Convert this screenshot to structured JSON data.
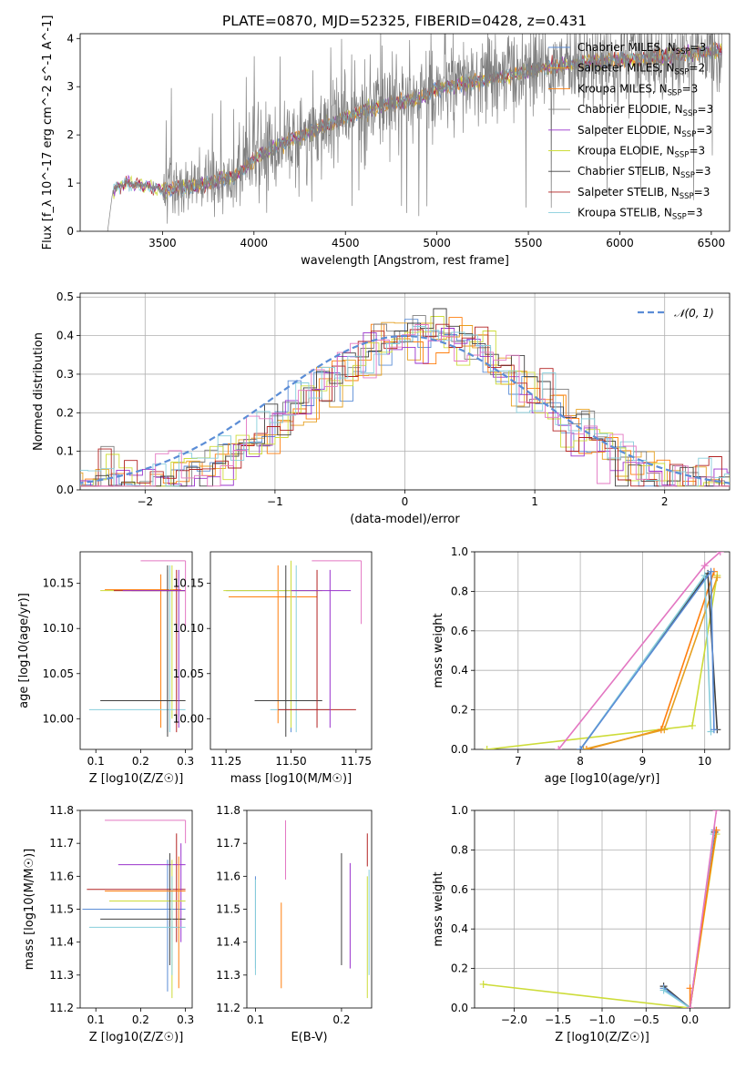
{
  "figure": {
    "title": "PLATE=0870, MJD=52325, FIBERID=0428, z=0.431"
  },
  "colors": {
    "Chabrier MILES": "#5b8dd6",
    "Salpeter MILES": "#e6a020",
    "Kroupa MILES": "#ff7f0e",
    "Chabrier ELODIE": "#7f7f7f",
    "Salpeter ELODIE": "#9932cc",
    "Kroupa ELODIE": "#cddc39",
    "Chabrier STELIB": "#404040",
    "Salpeter STELIB": "#b22222",
    "Kroupa STELIB": "#87cedb",
    "Pink": "#e377c2",
    "Data": "#808080"
  },
  "chart_data": [
    {
      "id": "spectrum",
      "type": "line",
      "xlabel": "wavelength [Angstrom, rest frame]",
      "ylabel": "Flux [f_λ 10^-17 erg cm^-2 s^-1 A^-1]",
      "xlim": [
        3050,
        6600
      ],
      "ylim": [
        0,
        4.1
      ],
      "xticks": [
        "3500",
        "4000",
        "4500",
        "5000",
        "5500",
        "6000",
        "6500"
      ],
      "yticks": [
        "0",
        "1",
        "2",
        "3",
        "4"
      ],
      "legend_position": "top-right",
      "legend": [
        {
          "name": "Chabrier MILES",
          "sub": "SSP",
          "n": "3"
        },
        {
          "name": "Salpeter MILES",
          "sub": "SSP",
          "n": "2"
        },
        {
          "name": "Kroupa MILES",
          "sub": "SSP",
          "n": "3"
        },
        {
          "name": "Chabrier ELODIE",
          "sub": "SSP",
          "n": "3"
        },
        {
          "name": "Salpeter ELODIE",
          "sub": "SSP",
          "n": "3"
        },
        {
          "name": "Kroupa ELODIE",
          "sub": "SSP",
          "n": "3"
        },
        {
          "name": "Chabrier STELIB",
          "sub": "SSP",
          "n": "3"
        },
        {
          "name": "Salpeter STELIB",
          "sub": "SSP",
          "n": "3"
        },
        {
          "name": "Kroupa STELIB",
          "sub": "SSP",
          "n": "3"
        }
      ],
      "continuum": {
        "x": [
          3200,
          3230,
          3300,
          3400,
          3500,
          3700,
          3900,
          4000,
          4200,
          4400,
          4600,
          4800,
          4900,
          5000,
          5200,
          5400,
          5600,
          5800,
          6000,
          6200,
          6400,
          6550
        ],
        "y": [
          0,
          0.85,
          1.0,
          0.95,
          0.85,
          0.95,
          1.15,
          1.5,
          1.9,
          2.2,
          2.5,
          2.7,
          2.75,
          2.95,
          3.1,
          3.25,
          3.4,
          3.5,
          3.55,
          3.6,
          3.7,
          3.75
        ]
      }
    },
    {
      "id": "residuals",
      "type": "histogram",
      "xlabel": "(data-model)/error",
      "ylabel": "Normed distribution",
      "xlim": [
        -2.5,
        2.5
      ],
      "ylim": [
        0,
        0.51
      ],
      "xticks": [
        "−2",
        "−1",
        "0",
        "1",
        "2"
      ],
      "yticks": [
        "0.0",
        "0.1",
        "0.2",
        "0.3",
        "0.4",
        "0.5"
      ],
      "grid": true,
      "legend_position": "top-right",
      "legend": [
        "𝒩(0, 1)"
      ],
      "bin_width": 0.1
    },
    {
      "id": "age-vs-Z",
      "type": "errorbar",
      "xlabel": "Z [log10(Z/Z☉)]",
      "ylabel": "age [log10(age/yr)]",
      "xlim": [
        0.065,
        0.315
      ],
      "ylim": [
        9.966,
        10.185
      ],
      "xticks": [
        "0.1",
        "0.2",
        "0.3"
      ],
      "yticks": [
        "10.00",
        "10.05",
        "10.10",
        "10.15"
      ],
      "points": [
        {
          "color": "Chabrier MILES",
          "x": 0.26,
          "xerr": [
            0.18,
            0.3
          ],
          "y": 10.142,
          "yerr": [
            9.985,
            10.165
          ]
        },
        {
          "color": "Kroupa MILES",
          "x": 0.245,
          "xerr": [
            0.12,
            0.29
          ],
          "y": 10.143,
          "yerr": [
            9.99,
            10.16
          ]
        },
        {
          "color": "Kroupa ELODIE",
          "x": 0.27,
          "xerr": [
            0.11,
            0.3
          ],
          "y": 10.142,
          "yerr": [
            10.0,
            10.17
          ]
        },
        {
          "color": "Kroupa STELIB",
          "x": 0.265,
          "xerr": [
            0.085,
            0.3
          ],
          "y": 10.01,
          "yerr": [
            9.985,
            10.17
          ]
        },
        {
          "color": "Chabrier STELIB",
          "x": 0.26,
          "xerr": [
            0.11,
            0.3
          ],
          "y": 10.02,
          "yerr": [
            9.98,
            10.17
          ]
        },
        {
          "color": "Salpeter STELIB",
          "x": 0.28,
          "xerr": [
            0.14,
            0.3
          ],
          "y": 10.142,
          "yerr": [
            9.985,
            10.165
          ]
        },
        {
          "color": "Salpeter ELODIE",
          "x": 0.285,
          "xerr": [
            0.16,
            0.3
          ],
          "y": 10.142,
          "yerr": [
            9.99,
            10.165
          ]
        },
        {
          "color": "Pink",
          "x": 0.3,
          "xerr": [
            0.2,
            0.3
          ],
          "y": 10.175,
          "yerr": [
            10.1,
            10.175
          ]
        }
      ]
    },
    {
      "id": "age-vs-mass",
      "type": "errorbar",
      "xlabel": "mass [log10(M/M☉)]",
      "ylabel": "",
      "xlim": [
        11.19,
        11.81
      ],
      "ylim": [
        9.966,
        10.185
      ],
      "xticks": [
        "11.25",
        "11.50",
        "11.75"
      ],
      "yticks": [
        "10.00",
        "10.05",
        "10.10",
        "10.15"
      ],
      "points": [
        {
          "color": "Chabrier MILES",
          "x": 11.5,
          "xerr": [
            11.25,
            11.6
          ],
          "y": 10.142,
          "yerr": [
            9.985,
            10.175
          ]
        },
        {
          "color": "Kroupa MILES",
          "x": 11.45,
          "xerr": [
            11.26,
            11.6
          ],
          "y": 10.135,
          "yerr": [
            9.995,
            10.17
          ]
        },
        {
          "color": "Kroupa ELODIE",
          "x": 11.5,
          "xerr": [
            11.24,
            11.62
          ],
          "y": 10.142,
          "yerr": [
            9.99,
            10.175
          ]
        },
        {
          "color": "Kroupa STELIB",
          "x": 11.52,
          "xerr": [
            11.42,
            11.65
          ],
          "y": 10.01,
          "yerr": [
            9.985,
            10.17
          ]
        },
        {
          "color": "Chabrier STELIB",
          "x": 11.48,
          "xerr": [
            11.36,
            11.62
          ],
          "y": 10.02,
          "yerr": [
            9.98,
            10.17
          ]
        },
        {
          "color": "Salpeter STELIB",
          "x": 11.6,
          "xerr": [
            11.45,
            11.75
          ],
          "y": 10.01,
          "yerr": [
            9.99,
            10.165
          ]
        },
        {
          "color": "Salpeter ELODIE",
          "x": 11.65,
          "xerr": [
            11.5,
            11.73
          ],
          "y": 10.142,
          "yerr": [
            9.99,
            10.165
          ]
        },
        {
          "color": "Pink",
          "x": 11.77,
          "xerr": [
            11.58,
            11.77
          ],
          "y": 10.175,
          "yerr": [
            10.105,
            10.175
          ]
        }
      ]
    },
    {
      "id": "weight-vs-age",
      "type": "line",
      "xlabel": "age [log10(age/yr)]",
      "ylabel": "mass weight",
      "xlim": [
        6.3,
        10.4
      ],
      "ylim": [
        0,
        1.0
      ],
      "xticks": [
        "7",
        "8",
        "9",
        "10"
      ],
      "yticks": [
        "0.0",
        "0.2",
        "0.4",
        "0.6",
        "0.8",
        "1.0"
      ],
      "grid": true,
      "series": [
        {
          "color": "Kroupa ELODIE",
          "x": [
            6.5,
            9.8,
            10.2
          ],
          "y": [
            0.0,
            0.12,
            0.88
          ]
        },
        {
          "color": "Kroupa MILES",
          "x": [
            8.1,
            9.3,
            10.15
          ],
          "y": [
            0.0,
            0.1,
            0.9
          ]
        },
        {
          "color": "Salpeter MILES",
          "x": [
            8.05,
            9.35,
            10.2
          ],
          "y": [
            0.0,
            0.1,
            0.87
          ]
        },
        {
          "color": "Pink",
          "x": [
            7.65,
            10.0,
            10.25
          ],
          "y": [
            0.0,
            0.93,
            1.0
          ]
        },
        {
          "color": "Chabrier STELIB",
          "x": [
            8.0,
            10.05,
            10.2
          ],
          "y": [
            0.0,
            0.89,
            0.1
          ]
        },
        {
          "color": "Kroupa STELIB",
          "x": [
            8.0,
            10.0,
            10.1
          ],
          "y": [
            0.0,
            0.88,
            0.09
          ]
        },
        {
          "color": "Chabrier MILES",
          "x": [
            8.0,
            10.1,
            10.15
          ],
          "y": [
            0.0,
            0.9,
            0.1
          ]
        }
      ]
    },
    {
      "id": "mass-vs-Z",
      "type": "errorbar",
      "xlabel": "Z [log10(Z/Z☉)]",
      "ylabel": "mass [log10(M/M☉)]",
      "xlim": [
        0.065,
        0.315
      ],
      "ylim": [
        11.2,
        11.8
      ],
      "xticks": [
        "0.1",
        "0.2",
        "0.3"
      ],
      "yticks": [
        "11.2",
        "11.3",
        "11.4",
        "11.5",
        "11.6",
        "11.7",
        "11.8"
      ],
      "points": [
        {
          "color": "Chabrier MILES",
          "x": 0.26,
          "xerr": [
            0.07,
            0.3
          ],
          "y": 11.5,
          "yerr": [
            11.25,
            11.65
          ]
        },
        {
          "color": "Salpeter STELIB",
          "x": 0.28,
          "xerr": [
            0.08,
            0.3
          ],
          "y": 11.56,
          "yerr": [
            11.4,
            11.73
          ]
        },
        {
          "color": "Salpeter ELODIE",
          "x": 0.29,
          "xerr": [
            0.15,
            0.3
          ],
          "y": 11.635,
          "yerr": [
            11.4,
            11.7
          ]
        },
        {
          "color": "Kroupa ELODIE",
          "x": 0.27,
          "xerr": [
            0.13,
            0.3
          ],
          "y": 11.525,
          "yerr": [
            11.23,
            11.65
          ]
        },
        {
          "color": "Chabrier STELIB",
          "x": 0.265,
          "xerr": [
            0.11,
            0.3
          ],
          "y": 11.47,
          "yerr": [
            11.33,
            11.67
          ]
        },
        {
          "color": "Kroupa STELIB",
          "x": 0.27,
          "xerr": [
            0.085,
            0.3
          ],
          "y": 11.445,
          "yerr": [
            11.3,
            11.6
          ]
        },
        {
          "color": "Kroupa MILES",
          "x": 0.285,
          "xerr": [
            0.12,
            0.3
          ],
          "y": 11.555,
          "yerr": [
            11.26,
            11.66
          ]
        },
        {
          "color": "Pink",
          "x": 0.3,
          "xerr": [
            0.12,
            0.3
          ],
          "y": 11.77,
          "yerr": [
            11.7,
            11.77
          ]
        }
      ]
    },
    {
      "id": "mass-vs-EBV",
      "type": "errorbar",
      "xlabel": "E(B-V)",
      "ylabel": "",
      "xlim": [
        0.09,
        0.235
      ],
      "ylim": [
        11.2,
        11.8
      ],
      "xticks": [
        "0.1",
        "0.2"
      ],
      "yticks": [
        "11.2",
        "11.3",
        "11.4",
        "11.5",
        "11.6",
        "11.7",
        "11.8"
      ],
      "points": [
        {
          "color": "Chabrier MILES",
          "x": 0.1,
          "y": 11.5,
          "yerr": [
            11.32,
            11.6
          ]
        },
        {
          "color": "Kroupa STELIB",
          "x": 0.1,
          "y": 11.45,
          "yerr": [
            11.3,
            11.59
          ]
        },
        {
          "color": "Kroupa MILES",
          "x": 0.13,
          "y": 11.45,
          "yerr": [
            11.26,
            11.52
          ]
        },
        {
          "color": "Pink",
          "x": 0.135,
          "y": 11.68,
          "yerr": [
            11.59,
            11.77
          ]
        },
        {
          "color": "Chabrier STELIB",
          "x": 0.2,
          "y": 11.5,
          "yerr": [
            11.33,
            11.67
          ]
        },
        {
          "color": "Salpeter ELODIE",
          "x": 0.21,
          "y": 11.5,
          "yerr": [
            11.32,
            11.64
          ]
        },
        {
          "color": "Kroupa ELODIE",
          "x": 0.23,
          "y": 11.42,
          "yerr": [
            11.23,
            11.6
          ]
        },
        {
          "color": "Salpeter STELIB",
          "x": 0.23,
          "y": 11.68,
          "yerr": [
            11.63,
            11.73
          ]
        },
        {
          "color": "Kroupa STELIB",
          "x": 0.232,
          "y": 11.5,
          "yerr": [
            11.3,
            11.62
          ]
        }
      ]
    },
    {
      "id": "weight-vs-Z",
      "type": "line",
      "xlabel": "Z [log10(Z/Z☉)]",
      "ylabel": "mass weight",
      "xlim": [
        -2.45,
        0.45
      ],
      "ylim": [
        0,
        1.0
      ],
      "xticks": [
        "−2.0",
        "−1.5",
        "−1.0",
        "−0.5",
        "0.0"
      ],
      "yticks": [
        "0.0",
        "0.2",
        "0.4",
        "0.6",
        "0.8",
        "1.0"
      ],
      "grid": true,
      "series": [
        {
          "color": "Kroupa ELODIE",
          "x": [
            -2.35,
            0.0,
            0.3
          ],
          "y": [
            0.12,
            0.0,
            0.88
          ]
        },
        {
          "color": "Chabrier STELIB",
          "x": [
            -0.3,
            0.0,
            0.28
          ],
          "y": [
            0.11,
            0.0,
            0.89
          ]
        },
        {
          "color": "Chabrier MILES",
          "x": [
            -0.3,
            0.0,
            0.28
          ],
          "y": [
            0.1,
            0.0,
            0.9
          ]
        },
        {
          "color": "Kroupa STELIB",
          "x": [
            -0.3,
            0.0,
            0.27
          ],
          "y": [
            0.09,
            0.0,
            0.88
          ]
        },
        {
          "color": "Kroupa MILES",
          "x": [
            0.0,
            0.0,
            0.3
          ],
          "y": [
            0.1,
            0.0,
            0.9
          ]
        },
        {
          "color": "Pink",
          "x": [
            0.0,
            0.3
          ],
          "y": [
            0.0,
            1.0
          ]
        }
      ]
    }
  ]
}
